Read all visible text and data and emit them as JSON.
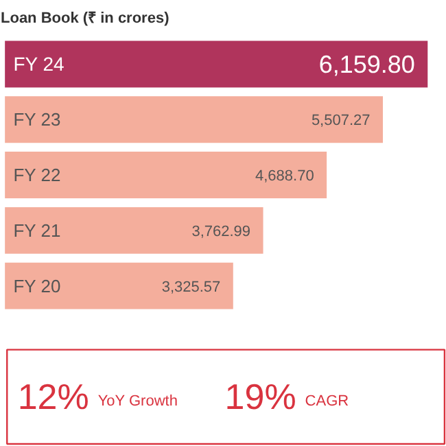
{
  "chart_data": {
    "type": "bar",
    "orientation": "horizontal",
    "title": "Loan Book (₹ in crores)",
    "categories": [
      "FY 24",
      "FY 23",
      "FY 22",
      "FY 21",
      "FY 20"
    ],
    "values": [
      6159.8,
      5507.27,
      4688.7,
      3762.99,
      3325.57
    ],
    "colors": [
      "#b0345c",
      "#f4ae9c",
      "#f4ae9c",
      "#f4ae9c",
      "#f4ae9c"
    ],
    "value_labels": [
      "6,159.80",
      "5,507.27",
      "4,688.70",
      "3,762.99",
      "3,325.57"
    ],
    "annotations": [
      "12% YoY Growth",
      "19% CAGR"
    ]
  }
}
